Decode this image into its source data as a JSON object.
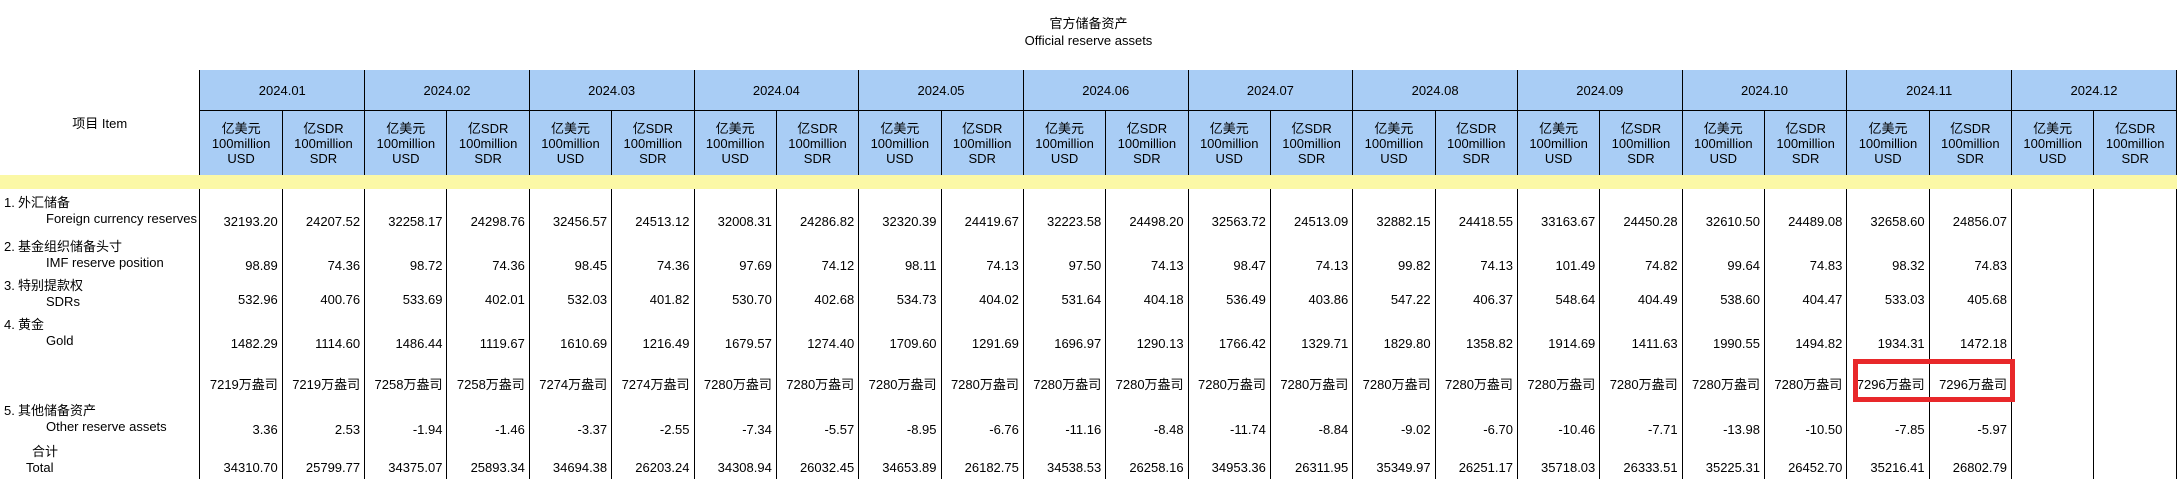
{
  "title_cn": "官方储备资产",
  "title_en": "Official reserve assets",
  "item_header": "项目  Item",
  "months": [
    "2024.01",
    "2024.02",
    "2024.03",
    "2024.04",
    "2024.05",
    "2024.06",
    "2024.07",
    "2024.08",
    "2024.09",
    "2024.10",
    "2024.11",
    "2024.12"
  ],
  "units": {
    "usd_l1": "亿美元",
    "usd_l2": "100million",
    "usd_l3": "USD",
    "sdr_l1": "亿SDR",
    "sdr_l2": "100million",
    "sdr_l3": "SDR"
  },
  "rows": [
    {
      "num": "1.",
      "cn": "外汇储备",
      "en": "Foreign currency reserves",
      "values": [
        "32193.20",
        "24207.52",
        "32258.17",
        "24298.76",
        "32456.57",
        "24513.12",
        "32008.31",
        "24286.82",
        "32320.39",
        "24419.67",
        "32223.58",
        "24498.20",
        "32563.72",
        "24513.09",
        "32882.15",
        "24418.55",
        "33163.67",
        "24450.28",
        "32610.50",
        "24489.08",
        "32658.60",
        "24856.07",
        "",
        ""
      ]
    },
    {
      "num": "2.",
      "cn": "基金组织储备头寸",
      "en": "IMF reserve position",
      "values": [
        "98.89",
        "74.36",
        "98.72",
        "74.36",
        "98.45",
        "74.36",
        "97.69",
        "74.12",
        "98.11",
        "74.13",
        "97.50",
        "74.13",
        "98.47",
        "74.13",
        "99.82",
        "74.13",
        "101.49",
        "74.82",
        "99.64",
        "74.83",
        "98.32",
        "74.83",
        "",
        ""
      ]
    },
    {
      "num": "3.",
      "cn": "特别提款权",
      "en": "SDRs",
      "values": [
        "532.96",
        "400.76",
        "533.69",
        "402.01",
        "532.03",
        "401.82",
        "530.70",
        "402.68",
        "534.73",
        "404.02",
        "531.64",
        "404.18",
        "536.49",
        "403.86",
        "547.22",
        "406.37",
        "548.64",
        "404.49",
        "538.60",
        "404.47",
        "533.03",
        "405.68",
        "",
        ""
      ]
    },
    {
      "num": "4.",
      "cn": "黄金",
      "en": "Gold",
      "values": [
        "1482.29",
        "1114.60",
        "1486.44",
        "1119.67",
        "1610.69",
        "1216.49",
        "1679.57",
        "1274.40",
        "1709.60",
        "1291.69",
        "1696.97",
        "1290.13",
        "1766.42",
        "1329.71",
        "1829.80",
        "1358.82",
        "1914.69",
        "1411.63",
        "1990.55",
        "1494.82",
        "1934.31",
        "1472.18",
        "",
        ""
      ]
    },
    {
      "num": "",
      "cn": "",
      "en": "",
      "values": [
        "7219万盎司",
        "7219万盎司",
        "7258万盎司",
        "7258万盎司",
        "7274万盎司",
        "7274万盎司",
        "7280万盎司",
        "7280万盎司",
        "7280万盎司",
        "7280万盎司",
        "7280万盎司",
        "7280万盎司",
        "7280万盎司",
        "7280万盎司",
        "7280万盎司",
        "7280万盎司",
        "7280万盎司",
        "7280万盎司",
        "7280万盎司",
        "7280万盎司",
        "7296万盎司",
        "7296万盎司",
        "",
        ""
      ]
    },
    {
      "num": "5.",
      "cn": "其他储备资产",
      "en": "Other reserve assets",
      "values": [
        "3.36",
        "2.53",
        "-1.94",
        "-1.46",
        "-3.37",
        "-2.55",
        "-7.34",
        "-5.57",
        "-8.95",
        "-6.76",
        "-11.16",
        "-8.48",
        "-11.74",
        "-8.84",
        "-9.02",
        "-6.70",
        "-10.46",
        "-7.71",
        "-13.98",
        "-10.50",
        "-7.85",
        "-5.97",
        "",
        ""
      ]
    },
    {
      "num": "",
      "cn": "合计",
      "en": "Total",
      "values": [
        "34310.70",
        "25799.77",
        "34375.07",
        "25893.34",
        "34694.38",
        "26203.24",
        "34308.94",
        "26032.45",
        "34653.89",
        "26182.75",
        "34538.53",
        "26258.16",
        "34953.36",
        "26311.95",
        "35349.97",
        "26251.17",
        "35718.03",
        "26333.51",
        "35225.31",
        "26452.70",
        "35216.41",
        "26802.79",
        "",
        ""
      ]
    }
  ],
  "highlight_color": "#e8282a",
  "header_color": "#a9cdf5",
  "spacer_color": "#fbf8a6"
}
